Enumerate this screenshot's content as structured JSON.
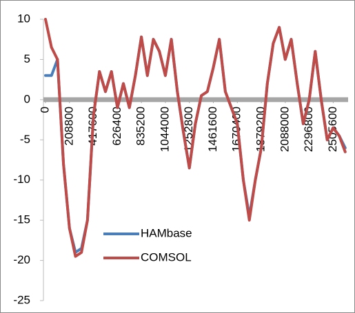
{
  "chart_data": {
    "type": "line",
    "x": [
      0,
      52200,
      104400,
      156600,
      208800,
      261000,
      313200,
      365400,
      417600,
      469800,
      522000,
      574200,
      626400,
      678600,
      730800,
      783000,
      835200,
      887400,
      939600,
      991800,
      1044000,
      1096200,
      1148400,
      1200600,
      1252800,
      1305000,
      1357200,
      1409400,
      1461600,
      1513800,
      1566000,
      1618200,
      1670400,
      1722600,
      1774800,
      1827000,
      1879200,
      1931400,
      1983600,
      2035800,
      2088000,
      2140200,
      2192400,
      2244600,
      2296800,
      2349000,
      2401200,
      2453400,
      2505600,
      2557800,
      2610000
    ],
    "series": [
      {
        "name": "HAMbase",
        "color": "#4a7ebb",
        "values": [
          3,
          3,
          5,
          -8,
          -16,
          -19,
          -18.5,
          -15,
          -2,
          3.5,
          1,
          3.5,
          -1,
          2,
          -1,
          3,
          7.8,
          3,
          7.5,
          6,
          3,
          7.5,
          1,
          -4,
          -8.5,
          -3,
          0.5,
          1,
          4,
          7.5,
          1,
          -1,
          -3,
          -10,
          -14.5,
          -10,
          -6,
          2,
          7,
          9,
          5,
          7.5,
          2,
          -3,
          0,
          6,
          0,
          -5,
          -3.5,
          -4.5,
          -6
        ]
      },
      {
        "name": "COMSOL",
        "color": "#be4b48",
        "values": [
          10,
          6.5,
          5,
          -8,
          -16,
          -19.5,
          -19,
          -15,
          -2,
          3.5,
          1,
          3.5,
          -1,
          2,
          -1,
          3,
          7.8,
          3,
          7.5,
          6,
          3,
          7.5,
          1,
          -4,
          -8.5,
          -3,
          0.5,
          1,
          4,
          7.5,
          1,
          -1,
          -3,
          -10,
          -15,
          -10,
          -6,
          2,
          7,
          9,
          5,
          7.5,
          2,
          -3,
          0,
          6,
          0,
          -5,
          -3.5,
          -4.5,
          -6.5
        ]
      }
    ],
    "xlim": [
      0,
      2635200
    ],
    "xticks": [
      0,
      208800,
      417600,
      626400,
      835200,
      1044000,
      1252800,
      1461600,
      1670400,
      1879200,
      2088000,
      2296800,
      2505600
    ],
    "ylim": [
      -25,
      10
    ],
    "yticks": [
      10,
      5,
      0,
      -5,
      -10,
      -15,
      -20,
      -25
    ],
    "grid": false,
    "legend": "lower-left"
  }
}
